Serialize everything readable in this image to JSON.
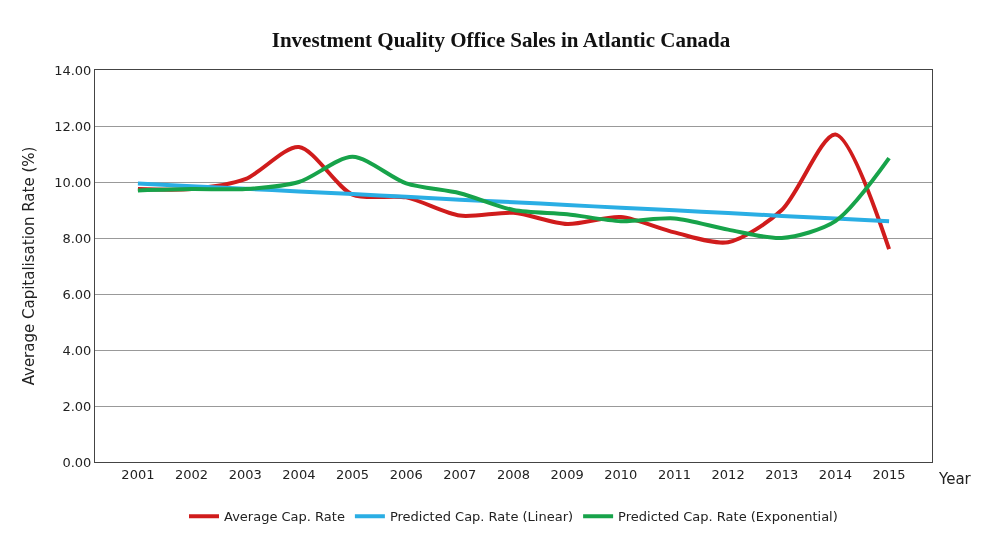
{
  "chart_data": {
    "type": "line",
    "title": "Investment Quality Office Sales in Atlantic Canada",
    "xlabel": "Year",
    "ylabel": "Average Capitalisation Rate (%)",
    "categories": [
      "2001",
      "2002",
      "2003",
      "2004",
      "2005",
      "2006",
      "2007",
      "2008",
      "2009",
      "2010",
      "2011",
      "2012",
      "2013",
      "2014",
      "2015"
    ],
    "series": [
      {
        "name": "Average Cap. Rate",
        "color": "#d01c1c",
        "values": [
          9.75,
          9.75,
          10.1,
          11.25,
          9.55,
          9.45,
          8.8,
          8.9,
          8.5,
          8.75,
          8.2,
          7.85,
          9.0,
          11.7,
          7.6
        ]
      },
      {
        "name": "Predicted Cap. Rate (Linear)",
        "color": "#2aaee4",
        "values": [
          9.95,
          9.85,
          9.76,
          9.66,
          9.57,
          9.47,
          9.37,
          9.28,
          9.18,
          9.08,
          8.99,
          8.89,
          8.79,
          8.7,
          8.6
        ]
      },
      {
        "name": "Predicted Cap. Rate (Exponential)",
        "color": "#17a34a",
        "values": [
          9.7,
          9.75,
          9.75,
          10.0,
          10.9,
          9.95,
          9.6,
          9.0,
          8.85,
          8.6,
          8.7,
          8.3,
          8.0,
          8.6,
          10.85
        ]
      }
    ],
    "ylim": [
      0,
      14
    ],
    "yticks": [
      {
        "value": 0,
        "label": "0.00"
      },
      {
        "value": 2,
        "label": "2.00"
      },
      {
        "value": 4,
        "label": "4.00"
      },
      {
        "value": 6,
        "label": "6.00"
      },
      {
        "value": 8,
        "label": "8.00"
      },
      {
        "value": 10,
        "label": "10.00"
      },
      {
        "value": 12,
        "label": "12.00"
      },
      {
        "value": 14,
        "label": "14.00"
      }
    ],
    "grid": "y",
    "legend": "bottom",
    "marker": "none",
    "line_style": "solid"
  }
}
